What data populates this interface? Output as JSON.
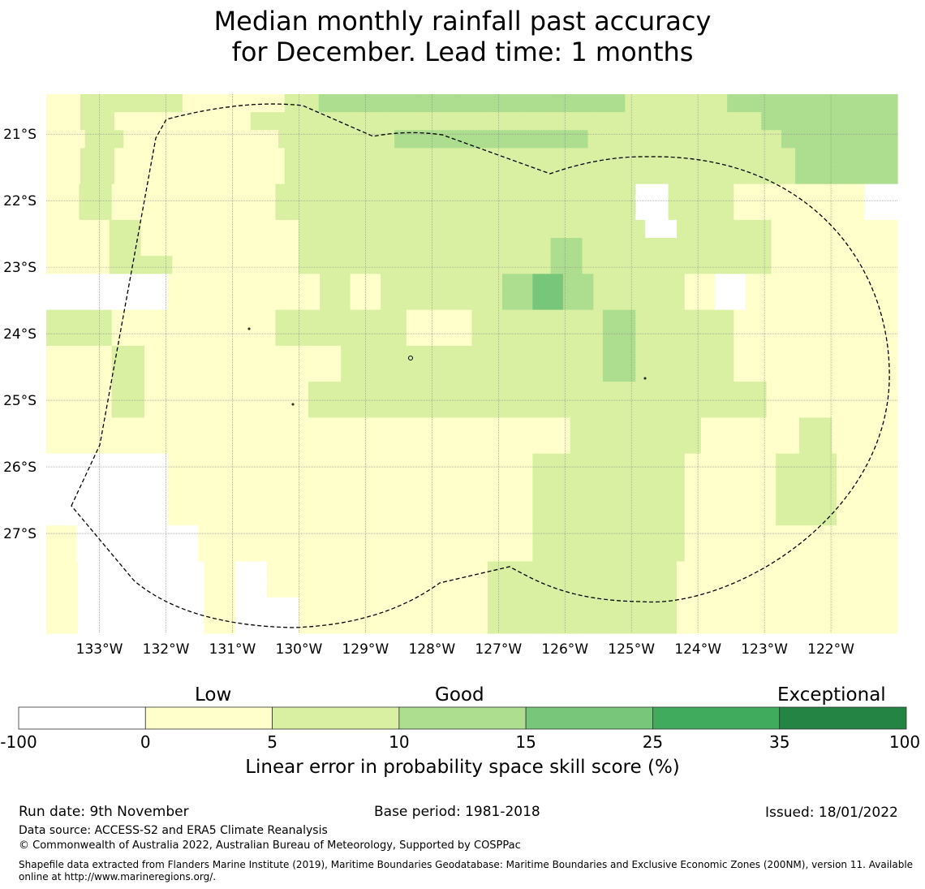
{
  "title_line1": "Median monthly rainfall past accuracy",
  "title_line2": "for December. Lead time: 1 months",
  "map": {
    "lon_min": -133.8,
    "lon_max": -121.0,
    "lat_min": -28.5,
    "lat_max": -20.4,
    "cell_deg": 0.5,
    "lon_ticks": [
      "133°W",
      "132°W",
      "131°W",
      "130°W",
      "129°W",
      "128°W",
      "127°W",
      "126°W",
      "125°W",
      "124°W",
      "123°W",
      "122°W"
    ],
    "lat_ticks": [
      "21°S",
      "22°S",
      "23°S",
      "24°S",
      "25°S",
      "26°S",
      "27°S"
    ],
    "grid": [
      "1222111233333333322233333",
      "1211112222222222222223333",
      "1211112223333322222333",
      "1211111222222222222222333",
      "1211111222222222222222333",
      "12111112222222222202211110",
      "12111112222222222202211110",
      "112111112222222222202221111",
      "112111112222222232222221111",
      "112211112222222232222221111",
      "0000111112122223432221011111",
      "0000111112122223432221011111",
      "22111112222112222322211111",
      "22111112222112222322211111",
      "11211111122222222322211111",
      "11211111122222222322211111",
      "11211111222222222222221111",
      "11211111222222222222221111",
      "11111111111111112222111211",
      "11111111111111112222111211",
      "0000111111111111222221112211",
      "0000111111111111222221112211",
      "0000111111111111222221112211",
      "0000111111111111222221112211",
      "1000011111111111222221111111",
      "1000011111111111222221111111",
      "100001011111112222221111111",
      "100001011111112222221111111",
      "100001001111112222221111111",
      "100001001111112222221111111"
    ],
    "classes": [
      "-100 to 0",
      "0 to 5",
      "5 to 10",
      "10 to 15",
      "15 to 25",
      "25 to 35",
      "35 to 100"
    ]
  },
  "colorbar": {
    "heading_low": "Low",
    "heading_good": "Good",
    "heading_exceptional": "Exceptional",
    "ticks": [
      "-100",
      "0",
      "5",
      "10",
      "15",
      "25",
      "35",
      "100"
    ],
    "colors": [
      "#ffffff",
      "#ffffcc",
      "#d9f0a3",
      "#addd8e",
      "#78c679",
      "#41ab5d",
      "#238443"
    ],
    "label": "Linear error in probability space skill score (%)"
  },
  "footer": {
    "run_date": "Run date: 9th November",
    "base_period": "Base period: 1981-2018",
    "issued": "Issued: 18/01/2022",
    "data_source": "Data source: ACCESS-S2 and ERA5 Climate Reanalysis",
    "copyright": "© Commonwealth of Australia 2022, Australian Bureau of Meteorology, Supported by COSPPac",
    "shapefile_1": "Shapefile data extracted from Flanders Marine Institute (2019), Maritime Boundaries Geodatabase: Maritime Boundaries and Exclusive Economic Zones (200NM), version 11. Available",
    "shapefile_2": "online at http://www.marineregions.org/."
  }
}
